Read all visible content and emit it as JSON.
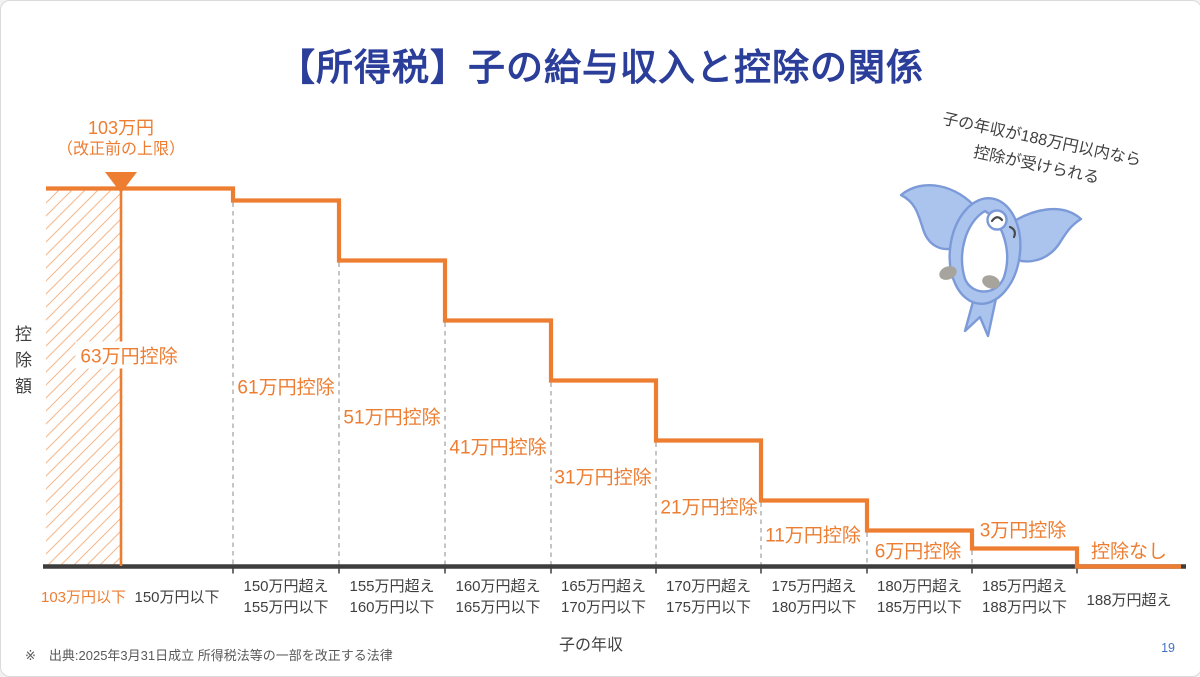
{
  "colors": {
    "accent_orange": "#ED7D31",
    "title_blue": "#2B3E99",
    "text_dark": "#3F3F3F",
    "axis_dark": "#3D3D3D",
    "dash_gray": "#A6A6A6",
    "footnote_gray": "#595959",
    "page_blue": "#4472C4",
    "bird_fill": "#AAC4EE",
    "bird_stroke": "#7D9AD8",
    "hand_gray": "#A7A49E"
  },
  "slide": {
    "title": "【所得税】子の給与収入と控除の関係",
    "footnote": "※　出典:2025年3月31日成立 所得税法等の一部を改正する法律",
    "page_number": "19"
  },
  "limit_marker": {
    "line1": "103万円",
    "line2": "（改正前の上限）"
  },
  "callout": {
    "line1": "子の年収が188万円以内なら",
    "line2": "控除が受けられる",
    "mascot": "blue-bird"
  },
  "axes": {
    "y_label": "控除額",
    "x_label": "子の年収"
  },
  "chart_data": {
    "type": "step",
    "title": "【所得税】子の給与収入と控除の関係",
    "xlabel": "子の年収",
    "ylabel": "控除額",
    "unit": "万円",
    "ylim": [
      0,
      70
    ],
    "grid": false,
    "categories": [
      {
        "line1": "103万円以下",
        "line2": "",
        "highlight": true
      },
      {
        "line1": "150万円以下",
        "line2": "",
        "highlight": false
      },
      {
        "line1": "150万円超え",
        "line2": "155万円以下",
        "highlight": false
      },
      {
        "line1": "155万円超え",
        "line2": "160万円以下",
        "highlight": false
      },
      {
        "line1": "160万円超え",
        "line2": "165万円以下",
        "highlight": false
      },
      {
        "line1": "165万円超え",
        "line2": "170万円以下",
        "highlight": false
      },
      {
        "line1": "170万円超え",
        "line2": "175万円以下",
        "highlight": false
      },
      {
        "line1": "175万円超え",
        "line2": "180万円以下",
        "highlight": false
      },
      {
        "line1": "180万円超え",
        "line2": "185万円以下",
        "highlight": false
      },
      {
        "line1": "185万円超え",
        "line2": "188万円以下",
        "highlight": false
      },
      {
        "line1": "188万円超え",
        "line2": "",
        "highlight": false
      }
    ],
    "steps": [
      {
        "label": "63万円控除",
        "value": 63,
        "from_cat": 0,
        "to_cat": 2
      },
      {
        "label": "61万円控除",
        "value": 61,
        "from_cat": 2,
        "to_cat": 3
      },
      {
        "label": "51万円控除",
        "value": 51,
        "from_cat": 3,
        "to_cat": 4
      },
      {
        "label": "41万円控除",
        "value": 41,
        "from_cat": 4,
        "to_cat": 5
      },
      {
        "label": "31万円控除",
        "value": 31,
        "from_cat": 5,
        "to_cat": 6
      },
      {
        "label": "21万円控除",
        "value": 21,
        "from_cat": 6,
        "to_cat": 7
      },
      {
        "label": "11万円控除",
        "value": 11,
        "from_cat": 7,
        "to_cat": 8
      },
      {
        "label": "6万円控除",
        "value": 6,
        "from_cat": 8,
        "to_cat": 9
      },
      {
        "label": "3万円控除",
        "value": 3,
        "from_cat": 9,
        "to_cat": 10
      },
      {
        "label": "控除なし",
        "value": 0,
        "from_cat": 10,
        "to_cat": 11
      }
    ],
    "pre_reform_limit": {
      "label": "103万円（改正前の上限）",
      "value_man_yen": 103
    }
  }
}
